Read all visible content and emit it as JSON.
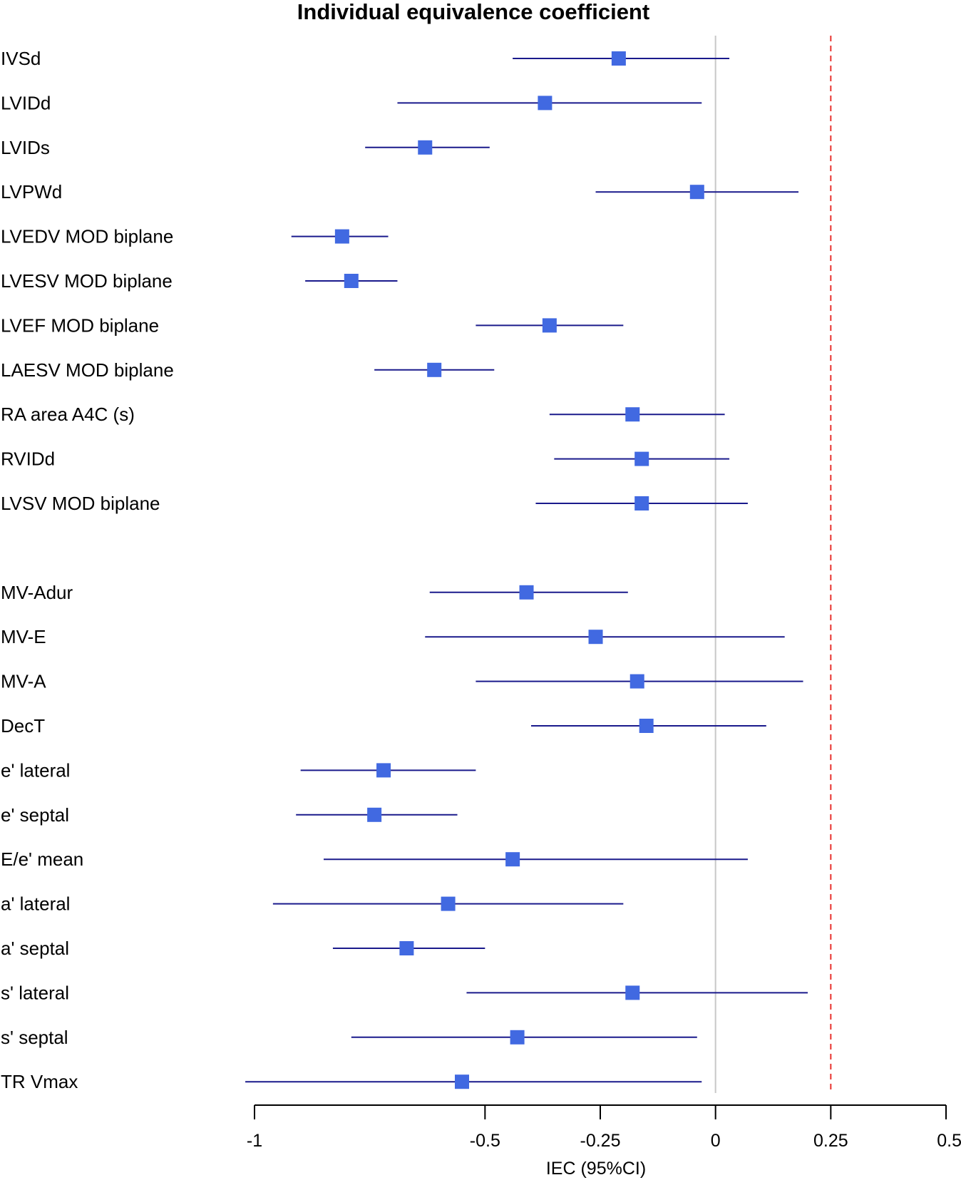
{
  "chart_data": {
    "type": "forest",
    "title": "Individual equivalence coefficient",
    "xlabel": "IEC (95%CI)",
    "xlim": [
      -1,
      0.5
    ],
    "xticks": [
      -1,
      -0.5,
      -0.25,
      0,
      0.25,
      0.5
    ],
    "xtick_labels": [
      "-1",
      "-0.5",
      "-0.25",
      "0",
      "0.25",
      "0.5"
    ],
    "reference_line": {
      "x": 0,
      "color": "#c8c8c8",
      "style": "solid"
    },
    "threshold_line": {
      "x": 0.25,
      "color": "#e8322e",
      "style": "dashed"
    },
    "marker_color": "#4169e1",
    "ci_color": "#1a1a8c",
    "groups": [
      {
        "rows": [
          {
            "label": "IVSd",
            "estimate": -0.21,
            "lower": -0.44,
            "upper": 0.03
          },
          {
            "label": "LVIDd",
            "estimate": -0.37,
            "lower": -0.69,
            "upper": -0.03
          },
          {
            "label": "LVIDs",
            "estimate": -0.63,
            "lower": -0.76,
            "upper": -0.49
          },
          {
            "label": "LVPWd",
            "estimate": -0.04,
            "lower": -0.26,
            "upper": 0.18
          },
          {
            "label": "LVEDV MOD biplane",
            "estimate": -0.81,
            "lower": -0.92,
            "upper": -0.71
          },
          {
            "label": "LVESV MOD biplane",
            "estimate": -0.79,
            "lower": -0.89,
            "upper": -0.69
          },
          {
            "label": "LVEF MOD biplane",
            "estimate": -0.36,
            "lower": -0.52,
            "upper": -0.2
          },
          {
            "label": "LAESV MOD biplane",
            "estimate": -0.61,
            "lower": -0.74,
            "upper": -0.48
          },
          {
            "label": "RA area A4C (s)",
            "estimate": -0.18,
            "lower": -0.36,
            "upper": 0.02
          },
          {
            "label": "RVIDd",
            "estimate": -0.16,
            "lower": -0.35,
            "upper": 0.03
          },
          {
            "label": "LVSV MOD biplane",
            "estimate": -0.16,
            "lower": -0.39,
            "upper": 0.07
          }
        ]
      },
      {
        "rows": [
          {
            "label": "MV-Adur",
            "estimate": -0.41,
            "lower": -0.62,
            "upper": -0.19
          },
          {
            "label": "MV-E",
            "estimate": -0.26,
            "lower": -0.63,
            "upper": 0.15
          },
          {
            "label": "MV-A",
            "estimate": -0.17,
            "lower": -0.52,
            "upper": 0.19
          },
          {
            "label": "DecT",
            "estimate": -0.15,
            "lower": -0.4,
            "upper": 0.11
          },
          {
            "label": "e' lateral",
            "estimate": -0.72,
            "lower": -0.9,
            "upper": -0.52
          },
          {
            "label": "e' septal",
            "estimate": -0.74,
            "lower": -0.91,
            "upper": -0.56
          },
          {
            "label": "E/e' mean",
            "estimate": -0.44,
            "lower": -0.85,
            "upper": 0.07
          },
          {
            "label": "a' lateral",
            "estimate": -0.58,
            "lower": -0.96,
            "upper": -0.2
          },
          {
            "label": "a' septal",
            "estimate": -0.67,
            "lower": -0.83,
            "upper": -0.5
          },
          {
            "label": "s' lateral",
            "estimate": -0.18,
            "lower": -0.54,
            "upper": 0.2
          },
          {
            "label": "s' septal",
            "estimate": -0.43,
            "lower": -0.79,
            "upper": -0.04
          },
          {
            "label": "TR Vmax",
            "estimate": -0.55,
            "lower": -1.02,
            "upper": -0.03
          }
        ]
      }
    ]
  }
}
